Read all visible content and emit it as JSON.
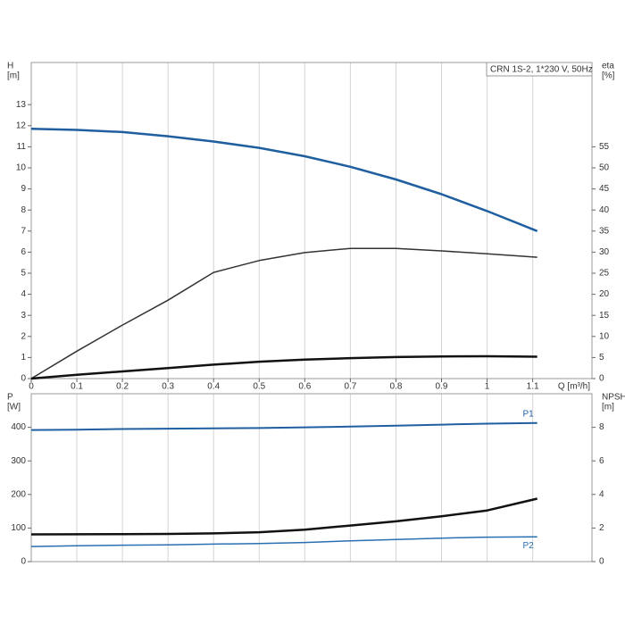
{
  "chart_data": [
    {
      "type": "line",
      "legend_box": "CRN 1S-2, 1*230 V, 50Hz",
      "ylabel": [
        "H",
        "[m]"
      ],
      "y2label": [
        "eta",
        "[%]"
      ],
      "xlabel": "Q [m³/h]",
      "x": [
        0,
        0.1,
        0.2,
        0.3,
        0.4,
        0.5,
        0.6,
        0.7,
        0.8,
        0.9,
        1.0,
        1.11
      ],
      "xlim": [
        0,
        1.23
      ],
      "xticks": [
        0,
        0.1,
        0.2,
        0.3,
        0.4,
        0.5,
        0.6,
        0.7,
        0.8,
        0.9,
        1,
        1.1
      ],
      "ylim": [
        0,
        15
      ],
      "yticks": [
        0,
        1,
        2,
        3,
        4,
        5,
        6,
        7,
        8,
        9,
        10,
        11,
        12,
        13
      ],
      "y2lim": [
        0,
        75
      ],
      "y2ticks": [
        0,
        5,
        10,
        15,
        20,
        25,
        30,
        35,
        40,
        45,
        50,
        55
      ],
      "grid": "x",
      "series": [
        {
          "color": "#1f5fa0",
          "width": 2.5,
          "values": [
            11.85,
            11.8,
            11.7,
            11.5,
            11.25,
            10.95,
            10.55,
            10.05,
            9.45,
            8.75,
            7.95,
            7.0
          ]
        },
        {
          "color": "#333333",
          "width": 1.5,
          "axis": "y2",
          "values": [
            0,
            6.5,
            12.7,
            18.6,
            25.2,
            28,
            29.9,
            30.9,
            30.9,
            30.3,
            29.6,
            28.8
          ]
        },
        {
          "color": "#111111",
          "width": 2.5,
          "axis": "y2",
          "values": [
            0,
            0.9,
            1.7,
            2.5,
            3.3,
            4.0,
            4.5,
            4.85,
            5.1,
            5.25,
            5.3,
            5.2
          ]
        }
      ]
    },
    {
      "type": "line",
      "ylabel": [
        "P",
        "[W]"
      ],
      "y2label": [
        "NPSH",
        "[m]"
      ],
      "x": [
        0,
        0.1,
        0.2,
        0.3,
        0.4,
        0.5,
        0.6,
        0.7,
        0.8,
        0.9,
        1.0,
        1.11
      ],
      "ylim": [
        0,
        500
      ],
      "yticks": [
        0,
        100,
        200,
        300,
        400
      ],
      "y2lim": [
        0,
        10
      ],
      "y2ticks": [
        0,
        2,
        4,
        6,
        8
      ],
      "grid": "x",
      "series": [
        {
          "name": "P1",
          "color": "#1f5fa0",
          "width": 2,
          "values": [
            392,
            393,
            395,
            396,
            397,
            398,
            400,
            402,
            405,
            408,
            411,
            413
          ]
        },
        {
          "name": "P2",
          "color": "#2a6fb0",
          "width": 1.5,
          "values": [
            45,
            47,
            49,
            50,
            52,
            54,
            57,
            62,
            66,
            70,
            73,
            74
          ]
        },
        {
          "color": "#111111",
          "width": 2.5,
          "axis": "y2",
          "values": [
            1.62,
            1.63,
            1.64,
            1.65,
            1.68,
            1.75,
            1.9,
            2.15,
            2.4,
            2.7,
            3.05,
            3.75
          ]
        }
      ]
    }
  ]
}
